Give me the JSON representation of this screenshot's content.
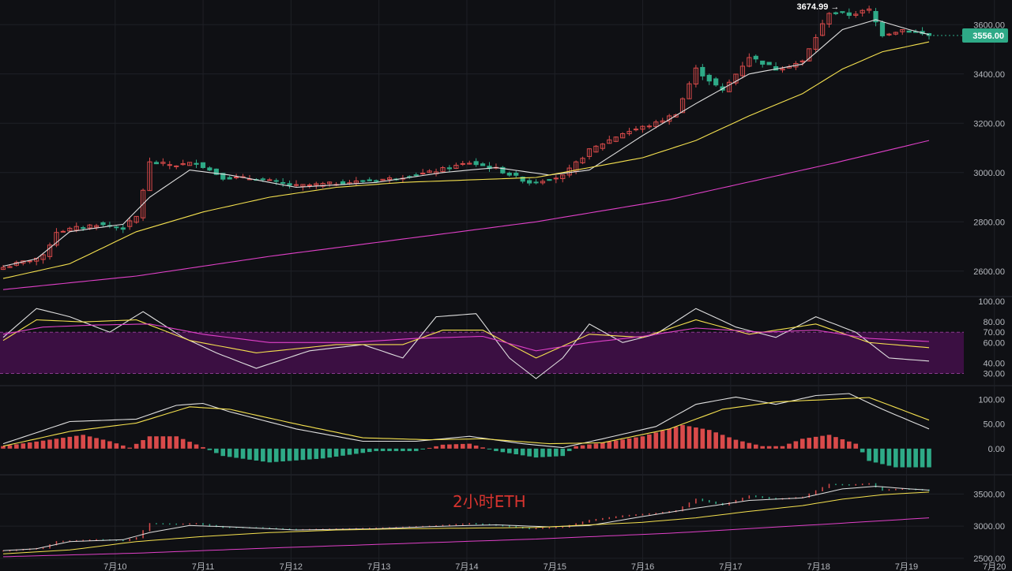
{
  "chart_data": {
    "type": "candlestick",
    "asset_label": "2小时ETH",
    "price_scale": {
      "ylim": [
        2500,
        3700
      ],
      "ticks": [
        2600,
        2800,
        3000,
        3200,
        3400,
        3600
      ],
      "tick_labels": [
        "2600.00",
        "2800.00",
        "3000.00",
        "3200.00",
        "3400.00",
        "3600.00"
      ]
    },
    "current_price": {
      "value": 3556.0,
      "label": "3556.00"
    },
    "high_marker": {
      "value": 3674.99,
      "label": "3674.99 →"
    },
    "x_ticks": [
      "7月10",
      "7月11",
      "7月12",
      "7月13",
      "7月14",
      "7月15",
      "7月16",
      "7月17",
      "7月18",
      "7月19",
      "7月20"
    ],
    "candles": {
      "count": 140,
      "close_path": [
        {
          "i": 0,
          "v": 2615
        },
        {
          "i": 6,
          "v": 2660
        },
        {
          "i": 8,
          "v": 2760
        },
        {
          "i": 14,
          "v": 2790
        },
        {
          "i": 18,
          "v": 2775
        },
        {
          "i": 20,
          "v": 2820
        },
        {
          "i": 22,
          "v": 3040
        },
        {
          "i": 26,
          "v": 3030
        },
        {
          "i": 29,
          "v": 3040
        },
        {
          "i": 33,
          "v": 2980
        },
        {
          "i": 38,
          "v": 2975
        },
        {
          "i": 44,
          "v": 2945
        },
        {
          "i": 52,
          "v": 2960
        },
        {
          "i": 58,
          "v": 2975
        },
        {
          "i": 64,
          "v": 3000
        },
        {
          "i": 70,
          "v": 3040
        },
        {
          "i": 74,
          "v": 3015
        },
        {
          "i": 79,
          "v": 2960
        },
        {
          "i": 84,
          "v": 2985
        },
        {
          "i": 88,
          "v": 3090
        },
        {
          "i": 93,
          "v": 3160
        },
        {
          "i": 98,
          "v": 3200
        },
        {
          "i": 101,
          "v": 3240
        },
        {
          "i": 104,
          "v": 3420
        },
        {
          "i": 108,
          "v": 3330
        },
        {
          "i": 112,
          "v": 3470
        },
        {
          "i": 116,
          "v": 3420
        },
        {
          "i": 120,
          "v": 3450
        },
        {
          "i": 124,
          "v": 3650
        },
        {
          "i": 127,
          "v": 3640
        },
        {
          "i": 130,
          "v": 3660
        },
        {
          "i": 132,
          "v": 3560
        },
        {
          "i": 135,
          "v": 3580
        },
        {
          "i": 139,
          "v": 3556
        }
      ]
    },
    "moving_averages": [
      {
        "color": "#e0e0e0",
        "path": [
          {
            "i": 0,
            "v": 2620
          },
          {
            "i": 5,
            "v": 2650
          },
          {
            "i": 10,
            "v": 2760
          },
          {
            "i": 18,
            "v": 2790
          },
          {
            "i": 22,
            "v": 2900
          },
          {
            "i": 28,
            "v": 3010
          },
          {
            "i": 34,
            "v": 2990
          },
          {
            "i": 44,
            "v": 2940
          },
          {
            "i": 56,
            "v": 2960
          },
          {
            "i": 66,
            "v": 3000
          },
          {
            "i": 74,
            "v": 3020
          },
          {
            "i": 82,
            "v": 2990
          },
          {
            "i": 88,
            "v": 3010
          },
          {
            "i": 96,
            "v": 3150
          },
          {
            "i": 104,
            "v": 3280
          },
          {
            "i": 112,
            "v": 3400
          },
          {
            "i": 120,
            "v": 3440
          },
          {
            "i": 126,
            "v": 3580
          },
          {
            "i": 131,
            "v": 3620
          },
          {
            "i": 136,
            "v": 3580
          },
          {
            "i": 139,
            "v": 3560
          }
        ]
      },
      {
        "color": "#f5e14f",
        "path": [
          {
            "i": 0,
            "v": 2570
          },
          {
            "i": 10,
            "v": 2630
          },
          {
            "i": 20,
            "v": 2760
          },
          {
            "i": 30,
            "v": 2840
          },
          {
            "i": 40,
            "v": 2900
          },
          {
            "i": 50,
            "v": 2940
          },
          {
            "i": 60,
            "v": 2960
          },
          {
            "i": 70,
            "v": 2970
          },
          {
            "i": 80,
            "v": 2980
          },
          {
            "i": 88,
            "v": 3020
          },
          {
            "i": 96,
            "v": 3060
          },
          {
            "i": 104,
            "v": 3130
          },
          {
            "i": 112,
            "v": 3230
          },
          {
            "i": 120,
            "v": 3320
          },
          {
            "i": 126,
            "v": 3420
          },
          {
            "i": 132,
            "v": 3490
          },
          {
            "i": 139,
            "v": 3530
          }
        ]
      },
      {
        "color": "#e040c8",
        "path": [
          {
            "i": 0,
            "v": 2525
          },
          {
            "i": 20,
            "v": 2580
          },
          {
            "i": 40,
            "v": 2660
          },
          {
            "i": 60,
            "v": 2730
          },
          {
            "i": 80,
            "v": 2800
          },
          {
            "i": 100,
            "v": 2890
          },
          {
            "i": 115,
            "v": 2980
          },
          {
            "i": 125,
            "v": 3040
          },
          {
            "i": 139,
            "v": 3130
          }
        ]
      }
    ],
    "rsi_panel": {
      "tick_labels": [
        "100.00",
        "80.00",
        "70.00",
        "60.00",
        "40.00",
        "30.00"
      ],
      "ticks": [
        100,
        80,
        70,
        60,
        40,
        30
      ],
      "band": [
        30,
        70
      ],
      "lines": [
        {
          "color": "#e0e0e0",
          "path": [
            {
              "i": 0,
              "v": 65
            },
            {
              "i": 5,
              "v": 93
            },
            {
              "i": 10,
              "v": 85
            },
            {
              "i": 16,
              "v": 70
            },
            {
              "i": 21,
              "v": 90
            },
            {
              "i": 27,
              "v": 65
            },
            {
              "i": 32,
              "v": 50
            },
            {
              "i": 38,
              "v": 35
            },
            {
              "i": 46,
              "v": 52
            },
            {
              "i": 54,
              "v": 58
            },
            {
              "i": 60,
              "v": 45
            },
            {
              "i": 65,
              "v": 85
            },
            {
              "i": 71,
              "v": 88
            },
            {
              "i": 76,
              "v": 45
            },
            {
              "i": 80,
              "v": 25
            },
            {
              "i": 84,
              "v": 45
            },
            {
              "i": 88,
              "v": 78
            },
            {
              "i": 93,
              "v": 60
            },
            {
              "i": 98,
              "v": 68
            },
            {
              "i": 104,
              "v": 93
            },
            {
              "i": 110,
              "v": 75
            },
            {
              "i": 116,
              "v": 65
            },
            {
              "i": 122,
              "v": 85
            },
            {
              "i": 128,
              "v": 70
            },
            {
              "i": 133,
              "v": 45
            },
            {
              "i": 139,
              "v": 42
            }
          ]
        },
        {
          "color": "#f5e14f",
          "path": [
            {
              "i": 0,
              "v": 62
            },
            {
              "i": 5,
              "v": 82
            },
            {
              "i": 12,
              "v": 80
            },
            {
              "i": 20,
              "v": 82
            },
            {
              "i": 28,
              "v": 62
            },
            {
              "i": 38,
              "v": 50
            },
            {
              "i": 50,
              "v": 58
            },
            {
              "i": 60,
              "v": 58
            },
            {
              "i": 66,
              "v": 72
            },
            {
              "i": 72,
              "v": 72
            },
            {
              "i": 80,
              "v": 45
            },
            {
              "i": 88,
              "v": 68
            },
            {
              "i": 96,
              "v": 65
            },
            {
              "i": 104,
              "v": 82
            },
            {
              "i": 112,
              "v": 68
            },
            {
              "i": 122,
              "v": 78
            },
            {
              "i": 130,
              "v": 60
            },
            {
              "i": 139,
              "v": 55
            }
          ]
        },
        {
          "color": "#e040c8",
          "path": [
            {
              "i": 0,
              "v": 68
            },
            {
              "i": 6,
              "v": 75
            },
            {
              "i": 14,
              "v": 77
            },
            {
              "i": 22,
              "v": 78
            },
            {
              "i": 30,
              "v": 68
            },
            {
              "i": 40,
              "v": 60
            },
            {
              "i": 52,
              "v": 60
            },
            {
              "i": 62,
              "v": 64
            },
            {
              "i": 72,
              "v": 66
            },
            {
              "i": 80,
              "v": 52
            },
            {
              "i": 88,
              "v": 60
            },
            {
              "i": 96,
              "v": 66
            },
            {
              "i": 104,
              "v": 74
            },
            {
              "i": 114,
              "v": 70
            },
            {
              "i": 122,
              "v": 72
            },
            {
              "i": 130,
              "v": 64
            },
            {
              "i": 139,
              "v": 61
            }
          ]
        }
      ]
    },
    "macd_panel": {
      "tick_labels": [
        "100.00",
        "50.00",
        "0.00"
      ],
      "ticks": [
        100,
        50,
        0
      ],
      "ylim": [
        -50,
        120
      ],
      "lines": [
        {
          "color": "#e0e0e0",
          "path": [
            {
              "i": 0,
              "v": 10
            },
            {
              "i": 10,
              "v": 55
            },
            {
              "i": 20,
              "v": 60
            },
            {
              "i": 26,
              "v": 88
            },
            {
              "i": 30,
              "v": 92
            },
            {
              "i": 34,
              "v": 75
            },
            {
              "i": 44,
              "v": 40
            },
            {
              "i": 54,
              "v": 15
            },
            {
              "i": 62,
              "v": 15
            },
            {
              "i": 70,
              "v": 25
            },
            {
              "i": 78,
              "v": 10
            },
            {
              "i": 84,
              "v": 2
            },
            {
              "i": 90,
              "v": 20
            },
            {
              "i": 98,
              "v": 45
            },
            {
              "i": 104,
              "v": 90
            },
            {
              "i": 110,
              "v": 105
            },
            {
              "i": 116,
              "v": 90
            },
            {
              "i": 122,
              "v": 108
            },
            {
              "i": 127,
              "v": 112
            },
            {
              "i": 132,
              "v": 80
            },
            {
              "i": 139,
              "v": 40
            }
          ]
        },
        {
          "color": "#f5e14f",
          "path": [
            {
              "i": 0,
              "v": 5
            },
            {
              "i": 10,
              "v": 35
            },
            {
              "i": 20,
              "v": 52
            },
            {
              "i": 28,
              "v": 85
            },
            {
              "i": 34,
              "v": 80
            },
            {
              "i": 44,
              "v": 50
            },
            {
              "i": 54,
              "v": 22
            },
            {
              "i": 64,
              "v": 18
            },
            {
              "i": 72,
              "v": 20
            },
            {
              "i": 82,
              "v": 10
            },
            {
              "i": 90,
              "v": 12
            },
            {
              "i": 100,
              "v": 40
            },
            {
              "i": 108,
              "v": 80
            },
            {
              "i": 116,
              "v": 95
            },
            {
              "i": 124,
              "v": 100
            },
            {
              "i": 130,
              "v": 104
            },
            {
              "i": 139,
              "v": 58
            }
          ]
        }
      ],
      "histogram": [
        {
          "i": 0,
          "v": 5
        },
        {
          "i": 8,
          "v": 20
        },
        {
          "i": 12,
          "v": 28
        },
        {
          "i": 16,
          "v": 15
        },
        {
          "i": 19,
          "v": 2
        },
        {
          "i": 22,
          "v": 25
        },
        {
          "i": 26,
          "v": 25
        },
        {
          "i": 30,
          "v": 3
        },
        {
          "i": 33,
          "v": -15
        },
        {
          "i": 40,
          "v": -28
        },
        {
          "i": 48,
          "v": -20
        },
        {
          "i": 56,
          "v": -5
        },
        {
          "i": 62,
          "v": -5
        },
        {
          "i": 66,
          "v": 8
        },
        {
          "i": 70,
          "v": 10
        },
        {
          "i": 74,
          "v": -5
        },
        {
          "i": 80,
          "v": -18
        },
        {
          "i": 84,
          "v": -15
        },
        {
          "i": 86,
          "v": 5
        },
        {
          "i": 90,
          "v": 12
        },
        {
          "i": 96,
          "v": 25
        },
        {
          "i": 102,
          "v": 48
        },
        {
          "i": 106,
          "v": 38
        },
        {
          "i": 110,
          "v": 18
        },
        {
          "i": 114,
          "v": 5
        },
        {
          "i": 117,
          "v": 5
        },
        {
          "i": 120,
          "v": 20
        },
        {
          "i": 124,
          "v": 28
        },
        {
          "i": 128,
          "v": 10
        },
        {
          "i": 130,
          "v": -25
        },
        {
          "i": 134,
          "v": -38
        },
        {
          "i": 139,
          "v": -38
        }
      ]
    },
    "overview_panel": {
      "tick_labels": [
        "3500.00",
        "3000.00",
        "2500.00"
      ],
      "ticks": [
        3500,
        3000,
        2500
      ],
      "ylim": [
        2450,
        3750
      ]
    },
    "colors": {
      "up": "#d94a4a",
      "down": "#2eaa87",
      "background": "#0f1014",
      "grid": "#1e2026",
      "axis_text": "#b6b9bf",
      "rsi_band": "#3b0f42"
    }
  }
}
